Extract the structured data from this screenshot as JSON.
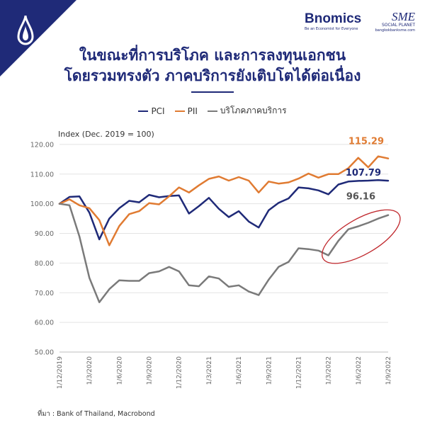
{
  "header": {
    "brand_name": "Bnomics",
    "brand_tagline": "Be an Economist for Everyone",
    "partner_name": "SME",
    "partner_sub": "SOCIAL PLANET",
    "partner_url": "bangkokbanksme.com"
  },
  "title_lines": [
    "ในขณะที่การบริโภค และการลงทุนเอกชน",
    "โดยรวมทรงตัว ภาคบริการยังเติบโตได้ต่อเนื่อง"
  ],
  "source": "ที่มา : Bank of Thailand, Macrobond",
  "colors": {
    "PCI": "#1f2a78",
    "PII": "#e07b32",
    "services": "#7a7a7a",
    "highlight": "#c0282d"
  },
  "chart_data": {
    "type": "line",
    "ylabel": "Index (Dec. 2019 = 100)",
    "ylim": [
      50,
      125
    ],
    "yticks": [
      "50.00",
      "60.00",
      "70.00",
      "80.00",
      "90.00",
      "100.00",
      "110.00",
      "120.00"
    ],
    "xticks": [
      "1/12/2019",
      "1/3/2020",
      "1/6/2020",
      "1/9/2020",
      "1/12/2020",
      "1/3/2021",
      "1/6/2021",
      "1/9/2021",
      "1/12/2021",
      "1/3/2022",
      "1/6/2022",
      "1/9/2022"
    ],
    "x": [
      "2019-12",
      "2020-01",
      "2020-02",
      "2020-03",
      "2020-04",
      "2020-05",
      "2020-06",
      "2020-07",
      "2020-08",
      "2020-09",
      "2020-10",
      "2020-11",
      "2020-12",
      "2021-01",
      "2021-02",
      "2021-03",
      "2021-04",
      "2021-05",
      "2021-06",
      "2021-07",
      "2021-08",
      "2021-09",
      "2021-10",
      "2021-11",
      "2021-12",
      "2022-01",
      "2022-02",
      "2022-03",
      "2022-04",
      "2022-05",
      "2022-06",
      "2022-07",
      "2022-08",
      "2022-09"
    ],
    "grid": "horizontal",
    "series": [
      {
        "name": "PCI",
        "values": [
          100,
          102.3,
          102.5,
          97,
          88,
          95,
          98.5,
          101,
          100.5,
          103,
          102.2,
          102.6,
          102.8,
          96.7,
          99.2,
          102,
          98.3,
          95.5,
          97.5,
          94,
          92,
          97.8,
          100.3,
          101.8,
          105.5,
          105.2,
          104.5,
          103.2,
          106.5,
          107.5,
          107.7,
          107.8,
          108,
          107.79
        ]
      },
      {
        "name": "PII",
        "values": [
          100,
          101.5,
          99.5,
          98.5,
          94.5,
          86,
          92.5,
          96.5,
          97.5,
          100.2,
          99.8,
          102.5,
          105.5,
          103.8,
          106.2,
          108.4,
          109.2,
          107.8,
          109,
          107.8,
          103.8,
          107.5,
          106.8,
          107.2,
          108.5,
          110.2,
          108.8,
          110,
          110,
          112,
          115.5,
          112.3,
          116,
          115.29
        ]
      },
      {
        "name": "บริโภคภาคบริการ",
        "values": [
          100,
          99.5,
          89,
          75,
          66.8,
          71.2,
          74.2,
          74,
          74,
          76.6,
          77.2,
          78.7,
          77.2,
          72.5,
          72.2,
          75.5,
          74.8,
          72,
          72.5,
          70.4,
          69.2,
          74.4,
          78.7,
          80.4,
          85,
          84.7,
          84.2,
          82.6,
          87.5,
          91.4,
          92.4,
          93.6,
          95,
          96.16
        ]
      }
    ],
    "end_labels": {
      "PCI": "107.79",
      "PII": "115.29",
      "services": "96.16"
    },
    "annotation": "ellipse highlighting recent services recovery"
  }
}
